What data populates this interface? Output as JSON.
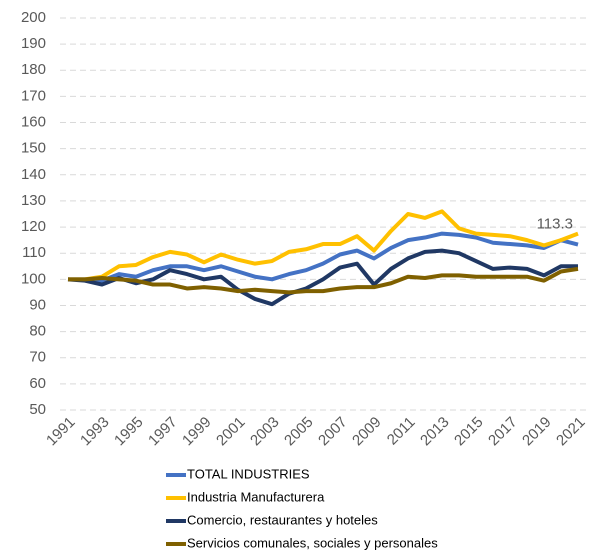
{
  "chart_data": {
    "type": "line",
    "x": [
      1991,
      1992,
      1993,
      1994,
      1995,
      1996,
      1997,
      1998,
      1999,
      2000,
      2001,
      2002,
      2003,
      2004,
      2005,
      2006,
      2007,
      2008,
      2009,
      2010,
      2011,
      2012,
      2013,
      2014,
      2015,
      2016,
      2017,
      2018,
      2019,
      2020,
      2021
    ],
    "xlim": [
      1991,
      2021
    ],
    "xticks": [
      1991,
      1993,
      1995,
      1997,
      1999,
      2001,
      2003,
      2005,
      2007,
      2009,
      2011,
      2013,
      2015,
      2017,
      2019,
      2021
    ],
    "ylim": [
      50,
      200
    ],
    "yticks": [
      50,
      60,
      70,
      80,
      90,
      100,
      110,
      120,
      130,
      140,
      150,
      160,
      170,
      180,
      190,
      200
    ],
    "grid": true,
    "legend": "bottom",
    "series": [
      {
        "name": "TOTAL INDUSTRIES",
        "color": "#4472c4",
        "values": [
          100,
          100,
          99.5,
          102,
          101,
          103.5,
          105,
          105,
          103.5,
          105,
          103,
          101,
          100,
          102,
          103.5,
          106,
          109.5,
          111,
          108,
          112,
          115,
          116,
          117.5,
          117,
          116,
          114,
          113.5,
          113,
          112,
          115,
          113.3
        ]
      },
      {
        "name": "Industria Manufacturera",
        "color": "#ffc000",
        "values": [
          100,
          100,
          101,
          105,
          105.5,
          108.5,
          110.5,
          109.5,
          106.5,
          109.5,
          107.5,
          106,
          107,
          110.5,
          111.5,
          113.5,
          113.5,
          116.5,
          111,
          118.5,
          125,
          123.5,
          126,
          119.5,
          117.5,
          117,
          116.5,
          115,
          113,
          115,
          117.5
        ]
      },
      {
        "name": "Comercio, restaurantes y hoteles",
        "color": "#203864",
        "values": [
          100,
          99.5,
          98,
          100.5,
          98.5,
          100,
          103.5,
          102,
          100,
          101,
          96,
          92.5,
          90.5,
          94.5,
          96.5,
          100,
          104.5,
          106,
          98,
          104,
          108,
          110.5,
          111,
          110,
          107,
          104,
          104.5,
          104,
          101.5,
          105,
          105
        ]
      },
      {
        "name": "Servicios comunales, sociales y personales",
        "color": "#7f6000",
        "values": [
          100,
          100,
          100.5,
          100,
          99.5,
          98,
          98,
          96.5,
          97,
          96.5,
          95.5,
          96,
          95.5,
          95,
          95.5,
          95.5,
          96.5,
          97,
          97,
          98.5,
          101,
          100.5,
          101.5,
          101.5,
          101,
          101,
          101,
          101,
          99.5,
          103,
          104
        ]
      }
    ]
  }
}
